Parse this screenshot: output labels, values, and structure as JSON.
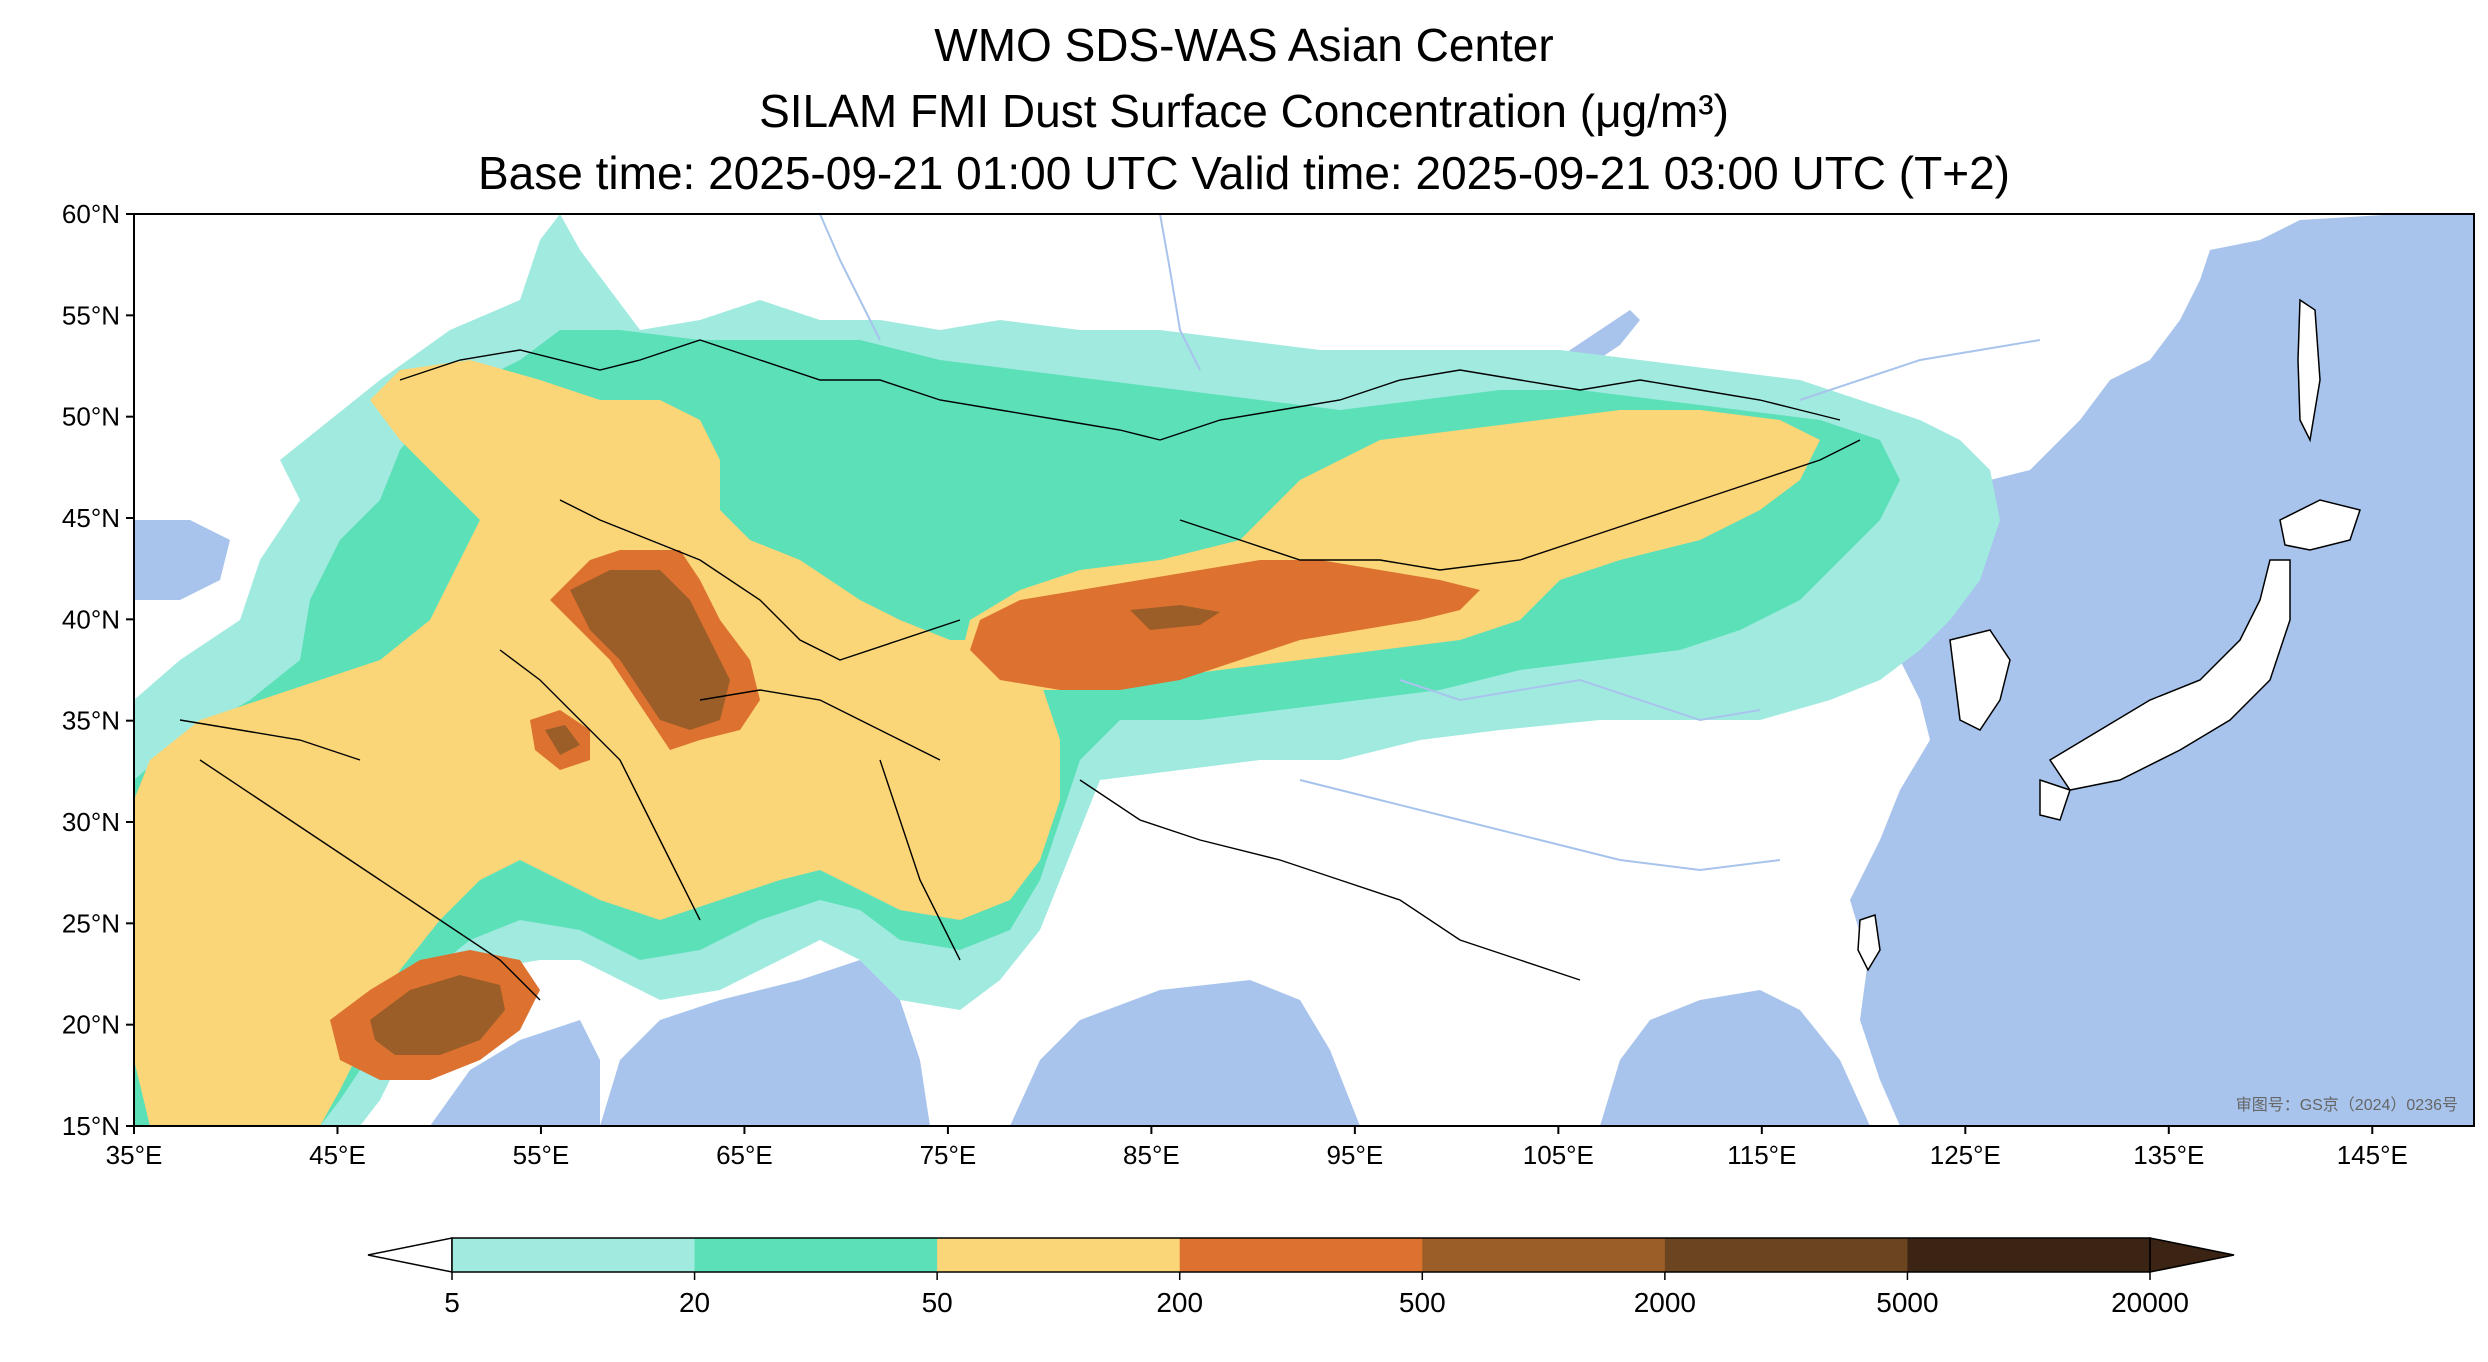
{
  "title": {
    "line1": "WMO SDS-WAS Asian Center",
    "line2": "SILAM FMI Dust Surface Concentration (μg/m³)",
    "line3": "Base time: 2025-09-21 01:00 UTC Valid time: 2025-09-21 03:00 UTC (T+2)"
  },
  "map": {
    "lon_range": [
      35,
      150
    ],
    "lat_range": [
      15,
      60
    ],
    "lat_ticks": [
      "60°N",
      "55°N",
      "50°N",
      "45°N",
      "40°N",
      "35°N",
      "30°N",
      "25°N",
      "20°N",
      "15°N"
    ],
    "lon_ticks": [
      "35°E",
      "45°E",
      "55°E",
      "65°E",
      "75°E",
      "85°E",
      "95°E",
      "105°E",
      "115°E",
      "125°E",
      "135°E",
      "145°E"
    ],
    "watermark": "审图号：GS京（2024）0236号",
    "colors": {
      "sea": "#a8c4ec",
      "land": "#ffffff",
      "border": "#000000",
      "river": "#a8c4ec"
    }
  },
  "colorbar": {
    "labels": [
      "5",
      "20",
      "50",
      "200",
      "500",
      "2000",
      "5000",
      "20000"
    ],
    "colors": [
      "#a0eadf",
      "#5ce0b8",
      "#fad678",
      "#dd7230",
      "#9c5e28",
      "#6a4520",
      "#3c2414"
    ]
  }
}
